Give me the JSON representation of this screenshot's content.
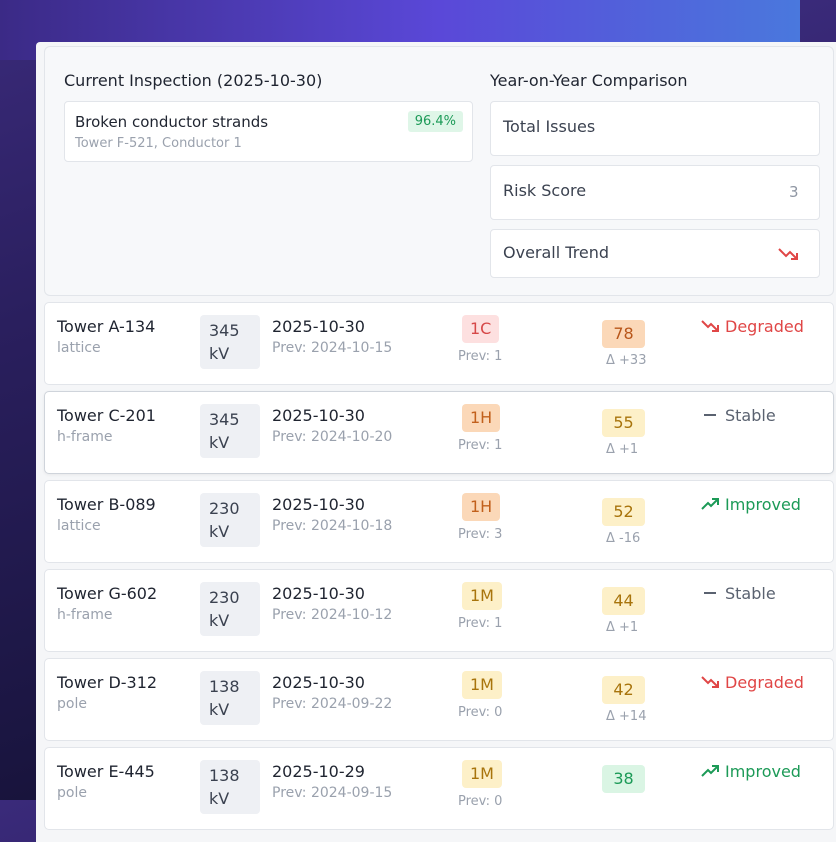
{
  "summary": {
    "current_title": "Current Inspection (2025-10-30)",
    "finding": {
      "name": "Broken conductor strands",
      "location": "Tower F-521, Conductor 1",
      "confidence": "96.4%"
    },
    "yoy_title": "Year-on-Year Comparison",
    "metrics": [
      {
        "label": "Total Issues",
        "value": ""
      },
      {
        "label": "Risk Score",
        "value": "3"
      },
      {
        "label": "Overall Trend",
        "value": ""
      }
    ]
  },
  "colors": {
    "sev_critical_bg": "#fde0e0",
    "sev_critical_fg": "#d64848",
    "sev_high_bg": "#fbd8b8",
    "sev_high_fg": "#c2601c",
    "sev_medium_bg": "#fdf0c8",
    "sev_medium_fg": "#a8740c",
    "risk_orange_bg": "#fbd8b8",
    "risk_orange_fg": "#b8561a",
    "risk_yellow_bg": "#fdf0c8",
    "risk_yellow_fg": "#a8740c",
    "risk_green_bg": "#daf5e4",
    "risk_green_fg": "#1c9a57",
    "degraded": "#e04646",
    "stable": "#5a6270",
    "improved": "#1c9a57"
  },
  "rows": [
    {
      "name": "Tower A-134",
      "type": "lattice",
      "voltage": "345 kV",
      "date": "2025-10-30",
      "prev": "Prev: 2024-10-15",
      "severity": "1C",
      "sev_level": "critical",
      "sev_prev": "Prev: 1",
      "risk": "78",
      "risk_level": "orange",
      "delta": "Δ +33",
      "trend": "Degraded",
      "trend_icon": "trend-down-icon"
    },
    {
      "name": "Tower C-201",
      "type": "h-frame",
      "voltage": "345 kV",
      "date": "2025-10-30",
      "prev": "Prev: 2024-10-20",
      "severity": "1H",
      "sev_level": "high",
      "sev_prev": "Prev: 1",
      "risk": "55",
      "risk_level": "yellow",
      "delta": "Δ +1",
      "trend": "Stable",
      "trend_icon": "dash-icon"
    },
    {
      "name": "Tower B-089",
      "type": "lattice",
      "voltage": "230 kV",
      "date": "2025-10-30",
      "prev": "Prev: 2024-10-18",
      "severity": "1H",
      "sev_level": "high",
      "sev_prev": "Prev: 3",
      "risk": "52",
      "risk_level": "yellow",
      "delta": "Δ -16",
      "trend": "Improved",
      "trend_icon": "trend-up-icon"
    },
    {
      "name": "Tower G-602",
      "type": "h-frame",
      "voltage": "230 kV",
      "date": "2025-10-30",
      "prev": "Prev: 2024-10-12",
      "severity": "1M",
      "sev_level": "medium",
      "sev_prev": "Prev: 1",
      "risk": "44",
      "risk_level": "yellow",
      "delta": "Δ +1",
      "trend": "Stable",
      "trend_icon": "dash-icon"
    },
    {
      "name": "Tower D-312",
      "type": "pole",
      "voltage": "138 kV",
      "date": "2025-10-30",
      "prev": "Prev: 2024-09-22",
      "severity": "1M",
      "sev_level": "medium",
      "sev_prev": "Prev: 0",
      "risk": "42",
      "risk_level": "yellow",
      "delta": "Δ +14",
      "trend": "Degraded",
      "trend_icon": "trend-down-icon"
    },
    {
      "name": "Tower E-445",
      "type": "pole",
      "voltage": "138 kV",
      "date": "2025-10-29",
      "prev": "Prev: 2024-09-15",
      "severity": "1M",
      "sev_level": "medium",
      "sev_prev": "Prev: 0",
      "risk": "38",
      "risk_level": "green",
      "delta": "",
      "trend": "Improved",
      "trend_icon": "trend-up-icon"
    }
  ]
}
